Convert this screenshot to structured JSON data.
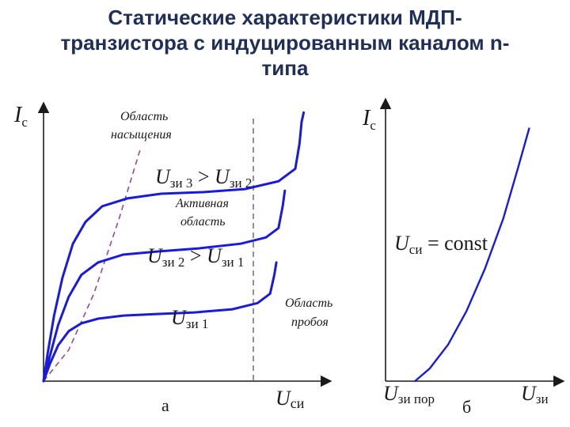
{
  "title": {
    "line1": "Статические характеристики МДП-",
    "line2": "транзистора с индуцированным каналом n-",
    "line3": "типа"
  },
  "chart_data": [
    {
      "type": "line",
      "panel_label": "а",
      "ylabel": {
        "symbol": "I",
        "sub": "c"
      },
      "xlabel": {
        "symbol": "U",
        "sub": "си"
      },
      "annotations": {
        "saturation_region": [
          "Область",
          "насыщения"
        ],
        "active_region": [
          "Активная",
          "область"
        ],
        "breakdown_region": [
          "Область",
          "пробоя"
        ],
        "curve3": {
          "a": "U",
          "asub": "зи 3",
          "rel": " > ",
          "b": "U",
          "bsub": "зи 2"
        },
        "curve2": {
          "a": "U",
          "asub": "зи 2",
          "rel": " > ",
          "b": "U",
          "bsub": "зи 1"
        },
        "curve1": {
          "a": "U",
          "asub": "зи 1"
        }
      },
      "series": [
        {
          "x": [
            0,
            0.1,
            0.25,
            0.45,
            0.7,
            1.0,
            1.4,
            2.0,
            2.8,
            3.8,
            4.8,
            5.6,
            6.0,
            6.1,
            6.15,
            6.2
          ],
          "y": [
            0,
            0.9,
            2.1,
            3.3,
            4.4,
            5.1,
            5.6,
            5.85,
            6.0,
            6.05,
            6.15,
            6.4,
            6.8,
            7.6,
            8.3,
            8.6
          ]
        },
        {
          "x": [
            0,
            0.15,
            0.35,
            0.6,
            0.9,
            1.3,
            1.9,
            2.7,
            3.7,
            4.7,
            5.3,
            5.6,
            5.7,
            5.75
          ],
          "y": [
            0,
            0.8,
            1.8,
            2.7,
            3.4,
            3.8,
            4.05,
            4.15,
            4.25,
            4.4,
            4.6,
            4.9,
            5.6,
            6.1
          ]
        },
        {
          "x": [
            0,
            0.15,
            0.35,
            0.6,
            0.9,
            1.3,
            1.9,
            2.7,
            3.6,
            4.5,
            5.1,
            5.4,
            5.5,
            5.55
          ],
          "y": [
            0,
            0.55,
            1.15,
            1.6,
            1.85,
            2.0,
            2.1,
            2.15,
            2.2,
            2.3,
            2.5,
            2.8,
            3.4,
            3.8
          ]
        }
      ],
      "boundary_dashed": {
        "x": [
          0,
          0.6,
          1.2,
          1.8,
          2.3
        ],
        "y": [
          0,
          1.0,
          2.8,
          5.2,
          7.4
        ]
      },
      "breakdown_line_x": 5.0
    },
    {
      "type": "line",
      "panel_label": "б",
      "ylabel": {
        "symbol": "I",
        "sub": "c"
      },
      "xlabel": {
        "symbol": "U",
        "sub": "зи"
      },
      "x_threshold": {
        "symbol": "U",
        "sub": "зи пор"
      },
      "condition": {
        "symbol": "U",
        "sub": "си",
        "rest": " = const"
      },
      "series": [
        {
          "x": [
            0.8,
            1.2,
            1.7,
            2.2,
            2.7,
            3.2,
            3.6,
            3.9
          ],
          "y": [
            0,
            0.45,
            1.3,
            2.5,
            4.0,
            5.8,
            7.6,
            9.0
          ]
        }
      ]
    }
  ]
}
